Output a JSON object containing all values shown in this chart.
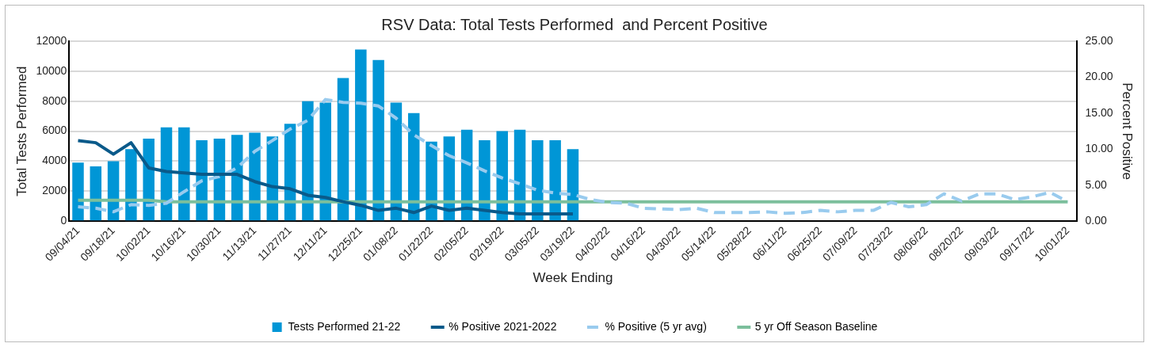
{
  "chart_data": {
    "type": "bar",
    "title": "RSV Data: Total Tests Performed  and Percent Positive",
    "xlabel": "Week Ending",
    "ylabel": "Total Tests Performed",
    "y2label": "Percent Positive",
    "categories": [
      "09/04/21",
      null,
      "09/18/21",
      null,
      "10/02/21",
      null,
      "10/16/21",
      null,
      "10/30/21",
      null,
      "11/13/21",
      null,
      "11/27/21",
      null,
      "12/11/21",
      null,
      "12/25/21",
      null,
      "01/08/22",
      null,
      "01/22/22",
      null,
      "02/05/22",
      null,
      "02/19/22",
      null,
      "03/05/22",
      null,
      "03/19/22",
      null,
      "04/02/22",
      null,
      "04/16/22",
      null,
      "04/30/22",
      null,
      "05/14/22",
      null,
      "05/28/22",
      null,
      "06/11/22",
      null,
      "06/25/22",
      null,
      "07/09/22",
      null,
      "07/23/22",
      null,
      "08/06/22",
      null,
      "08/20/22",
      null,
      "09/03/22",
      null,
      "09/17/22",
      null,
      "10/01/22"
    ],
    "series": [
      {
        "name": "Tests Performed 21-22",
        "color": "#0096d6",
        "values": [
          3900,
          3650,
          4000,
          4800,
          5500,
          6250,
          6250,
          5400,
          5500,
          5750,
          5900,
          5650,
          6500,
          8000,
          7900,
          9550,
          11450,
          10750,
          7900,
          7200,
          5300,
          5650,
          6100,
          5400,
          6000,
          6100,
          5400,
          5400,
          4800,
          null,
          null,
          null,
          null,
          null,
          null,
          null,
          null,
          null,
          null,
          null,
          null,
          null,
          null,
          null,
          null,
          null,
          null,
          null,
          null,
          null,
          null,
          null,
          null,
          null,
          null,
          null,
          null
        ]
      },
      {
        "name": "% Positive 2021-2022",
        "type": "line",
        "axis": "y2",
        "line_style": "solid",
        "color": "#0a5a8a",
        "values": [
          11.2,
          10.9,
          9.3,
          10.9,
          7.4,
          6.9,
          6.7,
          6.5,
          6.5,
          6.5,
          5.5,
          4.8,
          4.5,
          3.6,
          3.3,
          2.7,
          2.2,
          1.5,
          1.8,
          1.2,
          2.1,
          1.5,
          1.8,
          1.5,
          1.2,
          1.0,
          1.0,
          1.0,
          1.0,
          null,
          null,
          null,
          null,
          null,
          null,
          null,
          null,
          null,
          null,
          null,
          null,
          null,
          null,
          null,
          null,
          null,
          null,
          null,
          null,
          null,
          null,
          null,
          null,
          null,
          null,
          null,
          null
        ]
      },
      {
        "name": "% Positive (5 yr avg)",
        "type": "line",
        "axis": "y2",
        "line_style": "dashed",
        "color": "#99cbee",
        "values": [
          2.0,
          1.8,
          1.3,
          2.3,
          2.2,
          2.5,
          4.1,
          5.6,
          6.2,
          7.4,
          9.7,
          11.2,
          12.8,
          14.0,
          16.9,
          16.5,
          16.4,
          16.0,
          14.3,
          12.0,
          10.5,
          9.1,
          8.1,
          7.0,
          6.0,
          5.2,
          4.3,
          3.9,
          3.7,
          3.0,
          2.6,
          2.5,
          1.8,
          1.7,
          1.6,
          1.8,
          1.2,
          1.2,
          1.2,
          1.3,
          1.1,
          1.2,
          1.5,
          1.3,
          1.5,
          1.5,
          2.6,
          2.0,
          2.3,
          3.8,
          2.8,
          3.8,
          3.8,
          3.0,
          3.4,
          4.0,
          2.7
        ]
      },
      {
        "name": "5 yr Off Season Baseline",
        "type": "line",
        "axis": "y2",
        "line_style": "solid",
        "color": "#7cbf9c",
        "values": [
          2.9,
          2.9,
          2.9,
          2.9,
          2.9,
          2.7,
          2.7,
          2.7,
          2.7,
          2.7,
          2.7,
          2.7,
          2.7,
          2.7,
          2.7,
          2.7,
          2.7,
          2.7,
          2.7,
          2.7,
          2.7,
          2.7,
          2.7,
          2.7,
          2.7,
          2.7,
          2.7,
          2.7,
          2.7,
          2.7,
          2.7,
          2.7,
          2.7,
          2.7,
          2.7,
          2.7,
          2.7,
          2.7,
          2.7,
          2.7,
          2.7,
          2.7,
          2.7,
          2.7,
          2.7,
          2.7,
          2.7,
          2.7,
          2.7,
          2.7,
          2.7,
          2.7,
          2.7,
          2.7,
          2.7,
          2.7,
          2.7
        ]
      }
    ],
    "ylim": [
      0,
      12000
    ],
    "yticks": [
      0,
      2000,
      4000,
      6000,
      8000,
      10000,
      12000
    ],
    "y2lim": [
      0,
      25
    ],
    "y2ticks": [
      {
        "value": 0,
        "label": "0.00"
      },
      {
        "value": 5,
        "label": "5.00"
      },
      {
        "value": 10,
        "label": "10.00"
      },
      {
        "value": 15,
        "label": "15.00"
      },
      {
        "value": 20,
        "label": "20.00"
      },
      {
        "value": 25,
        "label": "25.00"
      }
    ],
    "grid": "y",
    "legend": "bottom"
  }
}
